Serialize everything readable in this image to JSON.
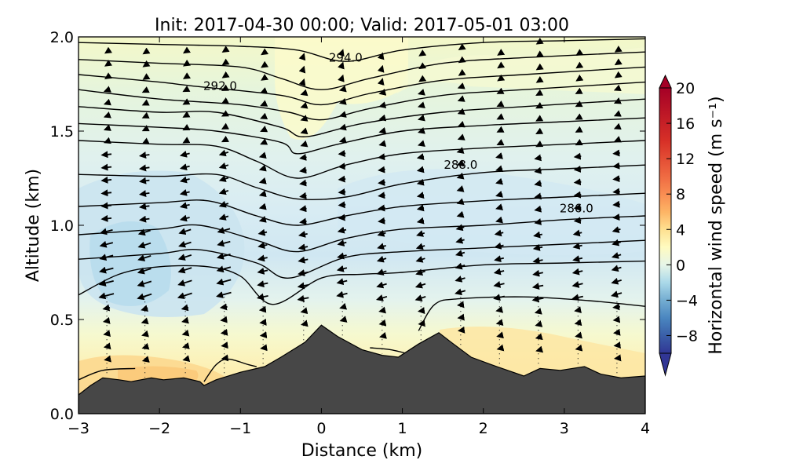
{
  "chart_data": {
    "type": "contour",
    "title": "Init: 2017-04-30 00:00; Valid: 2017-05-01 03:00",
    "xlabel": "Distance (km)",
    "ylabel": "Altitude (km)",
    "xlim": [
      -3,
      4
    ],
    "ylim": [
      0.0,
      2.0
    ],
    "x_ticks": [
      -3,
      -2,
      -1,
      0,
      1,
      2,
      3,
      4
    ],
    "x_tick_labels": [
      "−3",
      "−2",
      "−1",
      "0",
      "1",
      "2",
      "3",
      "4"
    ],
    "y_ticks": [
      0.0,
      0.5,
      1.0,
      1.5,
      2.0
    ],
    "y_tick_labels": [
      "0.0",
      "0.5",
      "1.0",
      "1.5",
      "2.0"
    ],
    "colorbar": {
      "label": "Horizontal wind speed (m s⁻¹)",
      "range": [
        -10,
        20
      ],
      "ticks": [
        20,
        16,
        12,
        8,
        4,
        0,
        -4,
        -8
      ],
      "tick_labels": [
        "20",
        "16",
        "12",
        "8",
        "4",
        "0",
        "−4",
        "−8"
      ],
      "cmap": "RdYlBu_r",
      "low_color": "#313695",
      "high_color": "#a50026"
    },
    "contour_labels": [
      {
        "text": "294.0",
        "x": 0.3,
        "y": 1.89
      },
      {
        "text": "292.0",
        "x": -1.25,
        "y": 1.74
      },
      {
        "text": "288.0",
        "x": 1.72,
        "y": 1.32
      },
      {
        "text": "286.0",
        "x": 3.15,
        "y": 1.09
      }
    ],
    "terrain": [
      [
        -3.0,
        0.1
      ],
      [
        -2.85,
        0.15
      ],
      [
        -2.7,
        0.19
      ],
      [
        -2.5,
        0.18
      ],
      [
        -2.35,
        0.17
      ],
      [
        -2.1,
        0.19
      ],
      [
        -1.95,
        0.18
      ],
      [
        -1.7,
        0.19
      ],
      [
        -1.5,
        0.17
      ],
      [
        -1.45,
        0.15
      ],
      [
        -1.3,
        0.18
      ],
      [
        -1.0,
        0.22
      ],
      [
        -0.7,
        0.25
      ],
      [
        -0.5,
        0.3
      ],
      [
        -0.2,
        0.38
      ],
      [
        0.0,
        0.47
      ],
      [
        0.2,
        0.41
      ],
      [
        0.5,
        0.34
      ],
      [
        0.75,
        0.31
      ],
      [
        0.95,
        0.3
      ],
      [
        1.2,
        0.37
      ],
      [
        1.45,
        0.43
      ],
      [
        1.6,
        0.38
      ],
      [
        1.85,
        0.3
      ],
      [
        2.1,
        0.26
      ],
      [
        2.5,
        0.2
      ],
      [
        2.7,
        0.24
      ],
      [
        2.95,
        0.23
      ],
      [
        3.25,
        0.25
      ],
      [
        3.45,
        0.21
      ],
      [
        3.7,
        0.19
      ],
      [
        4.0,
        0.2
      ]
    ],
    "isentropes": [
      [
        [
          -3,
          1.97
        ],
        [
          -2,
          1.96
        ],
        [
          -1,
          1.95
        ],
        [
          -0.3,
          1.93
        ],
        [
          0.3,
          1.87
        ],
        [
          1,
          1.93
        ],
        [
          2,
          1.97
        ],
        [
          3,
          1.98
        ],
        [
          4,
          1.99
        ]
      ],
      [
        [
          -3,
          1.88
        ],
        [
          -2,
          1.86
        ],
        [
          -1,
          1.84
        ],
        [
          -0.5,
          1.78
        ],
        [
          0,
          1.72
        ],
        [
          0.6,
          1.78
        ],
        [
          1.5,
          1.86
        ],
        [
          2.5,
          1.89
        ],
        [
          4,
          1.92
        ]
      ],
      [
        [
          -3,
          1.8
        ],
        [
          -2,
          1.76
        ],
        [
          -1.6,
          1.74
        ],
        [
          -0.5,
          1.69
        ],
        [
          0,
          1.64
        ],
        [
          0.6,
          1.7
        ],
        [
          1.5,
          1.77
        ],
        [
          2.5,
          1.8
        ],
        [
          4,
          1.84
        ]
      ],
      [
        [
          -3,
          1.72
        ],
        [
          -2,
          1.67
        ],
        [
          -1,
          1.64
        ],
        [
          -0.4,
          1.6
        ],
        [
          0,
          1.56
        ],
        [
          0.6,
          1.62
        ],
        [
          1.5,
          1.69
        ],
        [
          2.5,
          1.72
        ],
        [
          4,
          1.76
        ]
      ],
      [
        [
          -3,
          1.63
        ],
        [
          -2,
          1.6
        ],
        [
          -1.3,
          1.6
        ],
        [
          -0.5,
          1.52
        ],
        [
          -0.2,
          1.47
        ],
        [
          0.5,
          1.54
        ],
        [
          1.5,
          1.6
        ],
        [
          2.5,
          1.63
        ],
        [
          4,
          1.67
        ]
      ],
      [
        [
          -3,
          1.54
        ],
        [
          -2,
          1.52
        ],
        [
          -1.3,
          1.5
        ],
        [
          -0.5,
          1.44
        ],
        [
          -0.3,
          1.38
        ],
        [
          0.2,
          1.43
        ],
        [
          1,
          1.5
        ],
        [
          2,
          1.53
        ],
        [
          3,
          1.55
        ],
        [
          4,
          1.57
        ]
      ],
      [
        [
          -3,
          1.45
        ],
        [
          -2,
          1.43
        ],
        [
          -1.3,
          1.42
        ],
        [
          -0.8,
          1.34
        ],
        [
          -0.3,
          1.25
        ],
        [
          0.3,
          1.32
        ],
        [
          1,
          1.38
        ],
        [
          2,
          1.41
        ],
        [
          3,
          1.43
        ],
        [
          4,
          1.45
        ]
      ],
      [
        [
          -3,
          1.27
        ],
        [
          -2,
          1.26
        ],
        [
          -1.3,
          1.27
        ],
        [
          -0.8,
          1.2
        ],
        [
          -0.3,
          1.14
        ],
        [
          0.3,
          1.15
        ],
        [
          1,
          1.22
        ],
        [
          2,
          1.28
        ],
        [
          3,
          1.3
        ],
        [
          4,
          1.32
        ]
      ],
      [
        [
          -3,
          1.1
        ],
        [
          -2,
          1.12
        ],
        [
          -1.4,
          1.13
        ],
        [
          -0.8,
          1.05
        ],
        [
          -0.3,
          1.0
        ],
        [
          0.3,
          1.05
        ],
        [
          1,
          1.1
        ],
        [
          2,
          1.13
        ],
        [
          3,
          1.15
        ],
        [
          4,
          1.17
        ]
      ],
      [
        [
          -3,
          0.95
        ],
        [
          -2,
          0.98
        ],
        [
          -1.5,
          1.0
        ],
        [
          -0.8,
          0.92
        ],
        [
          -0.3,
          0.86
        ],
        [
          0.3,
          0.93
        ],
        [
          1,
          0.98
        ],
        [
          2,
          1.0
        ],
        [
          3,
          1.03
        ],
        [
          4,
          1.05
        ]
      ],
      [
        [
          -3,
          0.82
        ],
        [
          -2,
          0.85
        ],
        [
          -1.5,
          0.87
        ],
        [
          -0.8,
          0.8
        ],
        [
          -0.4,
          0.72
        ],
        [
          0.3,
          0.83
        ],
        [
          1,
          0.86
        ],
        [
          2,
          0.88
        ],
        [
          3,
          0.9
        ],
        [
          4,
          0.92
        ]
      ],
      [
        [
          -3,
          0.63
        ],
        [
          -2.5,
          0.74
        ],
        [
          -2,
          0.78
        ],
        [
          -1.4,
          0.78
        ],
        [
          -1,
          0.73
        ],
        [
          -0.6,
          0.58
        ],
        [
          0,
          0.72
        ],
        [
          0.5,
          0.74
        ],
        [
          1,
          0.75
        ],
        [
          2,
          0.79
        ],
        [
          3,
          0.8
        ],
        [
          4,
          0.81
        ]
      ]
    ],
    "isentrope_fragments": [
      [
        [
          1.2,
          0.44
        ],
        [
          1.4,
          0.58
        ],
        [
          1.7,
          0.61
        ],
        [
          2.5,
          0.62
        ],
        [
          3.3,
          0.6
        ],
        [
          4,
          0.57
        ]
      ],
      [
        [
          -1.45,
          0.17
        ],
        [
          -1.3,
          0.26
        ],
        [
          -1.15,
          0.29
        ],
        [
          -0.9,
          0.26
        ],
        [
          -0.8,
          0.25
        ]
      ],
      [
        [
          0.6,
          0.35
        ],
        [
          0.85,
          0.34
        ],
        [
          1.05,
          0.32
        ]
      ],
      [
        [
          -3,
          0.18
        ],
        [
          -2.7,
          0.23
        ],
        [
          -2.3,
          0.24
        ]
      ]
    ]
  }
}
